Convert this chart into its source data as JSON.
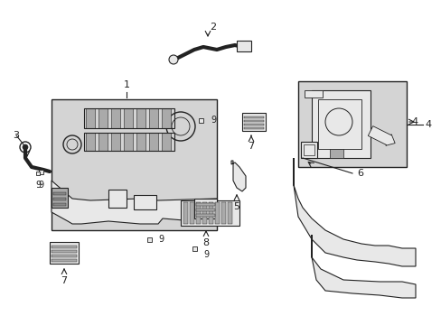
{
  "bg_color": "#ffffff",
  "line_color": "#222222",
  "gray_fill": "#d4d4d4",
  "light_gray": "#e8e8e8",
  "mid_gray": "#aaaaaa",
  "dark_gray": "#888888"
}
